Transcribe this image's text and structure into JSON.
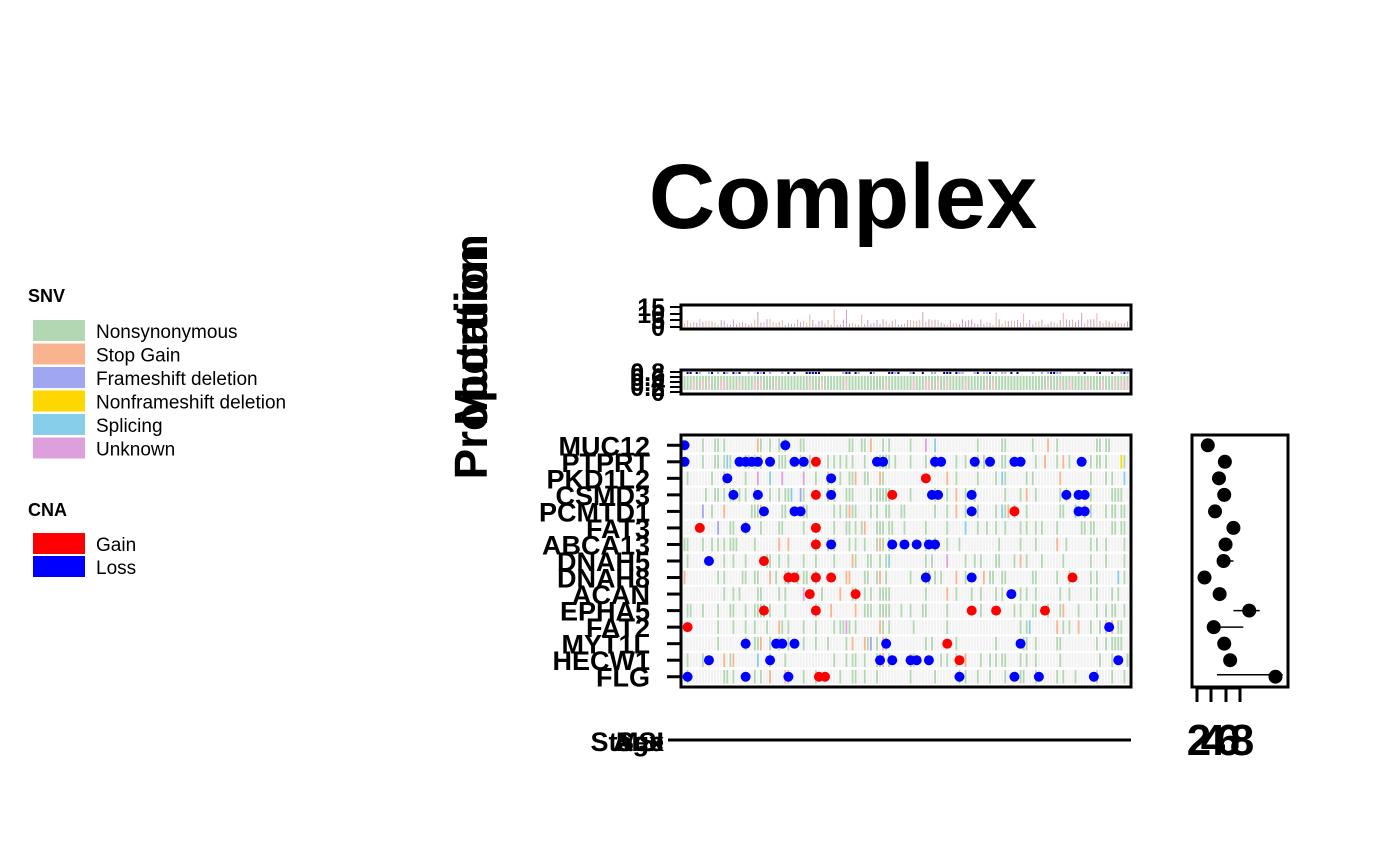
{
  "chart_data": {
    "type": "heatmap",
    "title": "Complex",
    "legend": {
      "snv_title": "SNV",
      "snv_items": [
        {
          "label": "Nonsynonymous",
          "color": "#b3d6b3"
        },
        {
          "label": "Stop Gain",
          "color": "#f9b48f"
        },
        {
          "label": "Frameshift deletion",
          "color": "#a0a6f1"
        },
        {
          "label": "Nonframeshift deletion",
          "color": "#ffd700"
        },
        {
          "label": "Splicing",
          "color": "#87ceeb"
        },
        {
          "label": "Unknown",
          "color": "#dda0dd"
        }
      ],
      "cna_title": "CNA",
      "cna_items": [
        {
          "label": "Gain",
          "color": "#ff0000"
        },
        {
          "label": "Loss",
          "color": "#0000ff"
        }
      ]
    },
    "ylabels": [
      "Proportion",
      "Mutation"
    ],
    "mutation_ticks": [
      "15",
      "10",
      "5",
      "0"
    ],
    "proportion_ticks": [
      "0.8",
      "0.6",
      "0.4",
      "0.2",
      "0"
    ],
    "genes": [
      "MUC12",
      "PTPRT",
      "PKD1L2",
      "CSMD3",
      "PCMTD1",
      "FAT3",
      "ABCA13",
      "DNAH5",
      "DNAH8",
      "ACAN",
      "EPHA5",
      "FAT2",
      "MYT1L",
      "HECW1",
      "FLG"
    ],
    "clinical_labels": [
      "Stage",
      "Sex",
      "Age",
      "MSI"
    ],
    "forest_ticks": [
      "2",
      "4",
      "6",
      "8"
    ],
    "forest_points": [
      {
        "gene": "MUC12",
        "est": 2.1
      },
      {
        "gene": "PTPRT",
        "est": 4.7
      },
      {
        "gene": "PKD1L2",
        "est": 3.8
      },
      {
        "gene": "CSMD3",
        "est": 4.6
      },
      {
        "gene": "PCMTD1",
        "est": 3.2
      },
      {
        "gene": "FAT3",
        "est": 6.0
      },
      {
        "gene": "ABCA13",
        "est": 4.8
      },
      {
        "gene": "DNAH5",
        "est": 4.5
      },
      {
        "gene": "DNAH8",
        "est": 1.6
      },
      {
        "gene": "ACAN",
        "est": 3.9
      },
      {
        "gene": "EPHA5",
        "est": 8.4
      },
      {
        "gene": "FAT2",
        "est": 3.0
      },
      {
        "gene": "MYT1L",
        "est": 4.6
      },
      {
        "gene": "HECW1",
        "est": 5.5
      },
      {
        "gene": "FLG",
        "est": 12.4
      }
    ],
    "cna_events": [
      {
        "gene": "MUC12",
        "loss": [
          0,
          33
        ]
      },
      {
        "gene": "PTPRT",
        "loss": [
          0,
          18,
          20,
          22,
          24,
          28,
          36,
          39,
          63,
          65,
          82,
          84,
          95,
          100,
          108,
          110,
          130
        ],
        "gain": [
          43
        ]
      },
      {
        "gene": "PKD1L2",
        "loss": [
          14,
          48
        ],
        "gain": [
          79
        ]
      },
      {
        "gene": "CSMD3",
        "loss": [
          16,
          24,
          48,
          81,
          83,
          94,
          125,
          129,
          131
        ],
        "gain": [
          43,
          68
        ]
      },
      {
        "gene": "PCMTD1",
        "loss": [
          26,
          36,
          38,
          94,
          129,
          131
        ],
        "gain": [
          108
        ]
      },
      {
        "gene": "FAT3",
        "loss": [
          20
        ],
        "gain": [
          5,
          43
        ]
      },
      {
        "gene": "ABCA13",
        "loss": [
          48,
          68,
          72,
          76,
          80,
          82
        ],
        "gain": [
          43
        ]
      },
      {
        "gene": "DNAH5",
        "loss": [
          8
        ],
        "gain": [
          26
        ]
      },
      {
        "gene": "DNAH8",
        "loss": [
          79,
          94
        ],
        "gain": [
          34,
          36,
          43,
          48,
          127
        ]
      },
      {
        "gene": "ACAN",
        "loss": [
          107
        ],
        "gain": [
          41,
          56
        ]
      },
      {
        "gene": "EPHA5",
        "gain": [
          26,
          43,
          94,
          102,
          118
        ]
      },
      {
        "gene": "FAT2",
        "loss": [
          139
        ],
        "gain": [
          1
        ]
      },
      {
        "gene": "MYT1L",
        "loss": [
          20,
          30,
          32,
          36,
          66,
          110
        ],
        "gain": [
          86
        ]
      },
      {
        "gene": "HECW1",
        "loss": [
          8,
          28,
          64,
          68,
          74,
          76,
          80,
          142
        ],
        "gain": [
          90
        ]
      },
      {
        "gene": "FLG",
        "loss": [
          1,
          20,
          34,
          90,
          108,
          116,
          134
        ],
        "gain": [
          44,
          46
        ]
      }
    ]
  }
}
